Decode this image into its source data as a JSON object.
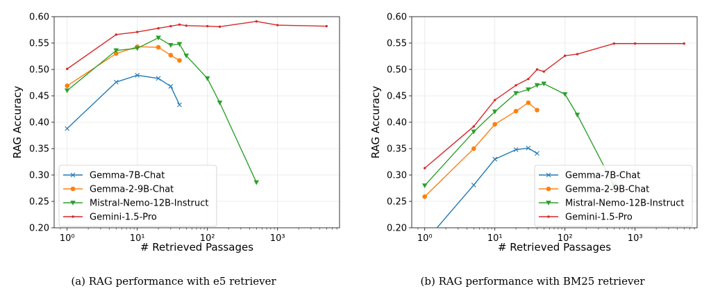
{
  "chart_data": [
    {
      "type": "line",
      "title": "",
      "caption": "(a)  RAG performance with e5 retriever",
      "xlabel": "# Retrieved Passages",
      "ylabel": "RAG Accuracy",
      "xscale": "log",
      "xlim": [
        0.75,
        7000
      ],
      "ylim": [
        0.2,
        0.6
      ],
      "yticks": [
        "0.20",
        "0.25",
        "0.30",
        "0.35",
        "0.40",
        "0.45",
        "0.50",
        "0.55",
        "0.60"
      ],
      "xticks": [
        {
          "value": 1,
          "label": "10⁰"
        },
        {
          "value": 10,
          "label": "10¹"
        },
        {
          "value": 100,
          "label": "10²"
        },
        {
          "value": 1000,
          "label": "10³"
        }
      ],
      "grid": true,
      "legend_position": "lower-left",
      "series": [
        {
          "name": "Gemma-7B-Chat",
          "color": "#1f77b4",
          "marker": "x",
          "x": [
            1,
            5,
            10,
            20,
            30,
            40
          ],
          "y": [
            0.388,
            0.476,
            0.489,
            0.483,
            0.468,
            0.433
          ]
        },
        {
          "name": "Gemma-2-9B-Chat",
          "color": "#ff7f0e",
          "marker": "circle",
          "x": [
            1,
            5,
            10,
            20,
            30,
            40
          ],
          "y": [
            0.469,
            0.53,
            0.543,
            0.542,
            0.527,
            0.517
          ]
        },
        {
          "name": "Mistral-Nemo-12B-Instruct",
          "color": "#2ca02c",
          "marker": "triangle-down",
          "x": [
            1,
            5,
            10,
            20,
            30,
            40,
            50,
            100,
            150,
            500
          ],
          "y": [
            0.46,
            0.536,
            0.54,
            0.56,
            0.546,
            0.548,
            0.526,
            0.483,
            0.437,
            0.286
          ]
        },
        {
          "name": "Gemini-1.5-Pro",
          "color": "#d62728",
          "marker": "dot",
          "x": [
            1,
            5,
            10,
            20,
            30,
            40,
            50,
            100,
            150,
            500,
            1000,
            5000
          ],
          "y": [
            0.501,
            0.566,
            0.571,
            0.578,
            0.582,
            0.585,
            0.583,
            0.582,
            0.581,
            0.591,
            0.584,
            0.582
          ]
        }
      ]
    },
    {
      "type": "line",
      "title": "",
      "caption": "(b)  RAG performance with BM25 retriever",
      "xlabel": "# Retrieved Passages",
      "ylabel": "RAG Accuracy",
      "xscale": "log",
      "xlim": [
        0.75,
        7000
      ],
      "ylim": [
        0.2,
        0.6
      ],
      "yticks": [
        "0.20",
        "0.25",
        "0.30",
        "0.35",
        "0.40",
        "0.45",
        "0.50",
        "0.55",
        "0.60"
      ],
      "xticks": [
        {
          "value": 1,
          "label": "10⁰"
        },
        {
          "value": 10,
          "label": "10¹"
        },
        {
          "value": 100,
          "label": "10²"
        },
        {
          "value": 1000,
          "label": "10³"
        }
      ],
      "grid": true,
      "legend_position": "lower-right",
      "series": [
        {
          "name": "Gemma-7B-Chat",
          "color": "#1f77b4",
          "marker": "x",
          "x": [
            1,
            5,
            10,
            20,
            30,
            40
          ],
          "y": [
            0.173,
            0.281,
            0.33,
            0.348,
            0.351,
            0.341
          ]
        },
        {
          "name": "Gemma-2-9B-Chat",
          "color": "#ff7f0e",
          "marker": "circle",
          "x": [
            1,
            5,
            10,
            20,
            30,
            40
          ],
          "y": [
            0.259,
            0.35,
            0.396,
            0.421,
            0.437,
            0.423
          ]
        },
        {
          "name": "Mistral-Nemo-12B-Instruct",
          "color": "#2ca02c",
          "marker": "triangle-down",
          "x": [
            1,
            5,
            10,
            20,
            30,
            40,
            50,
            100,
            150,
            500
          ],
          "y": [
            0.28,
            0.382,
            0.42,
            0.455,
            0.462,
            0.47,
            0.473,
            0.453,
            0.414,
            0.28
          ]
        },
        {
          "name": "Gemini-1.5-Pro",
          "color": "#d62728",
          "marker": "dot",
          "x": [
            1,
            5,
            10,
            20,
            30,
            40,
            50,
            100,
            150,
            500,
            1000,
            5000
          ],
          "y": [
            0.313,
            0.392,
            0.442,
            0.47,
            0.482,
            0.5,
            0.496,
            0.526,
            0.529,
            0.549,
            0.549,
            0.549
          ]
        }
      ]
    }
  ]
}
